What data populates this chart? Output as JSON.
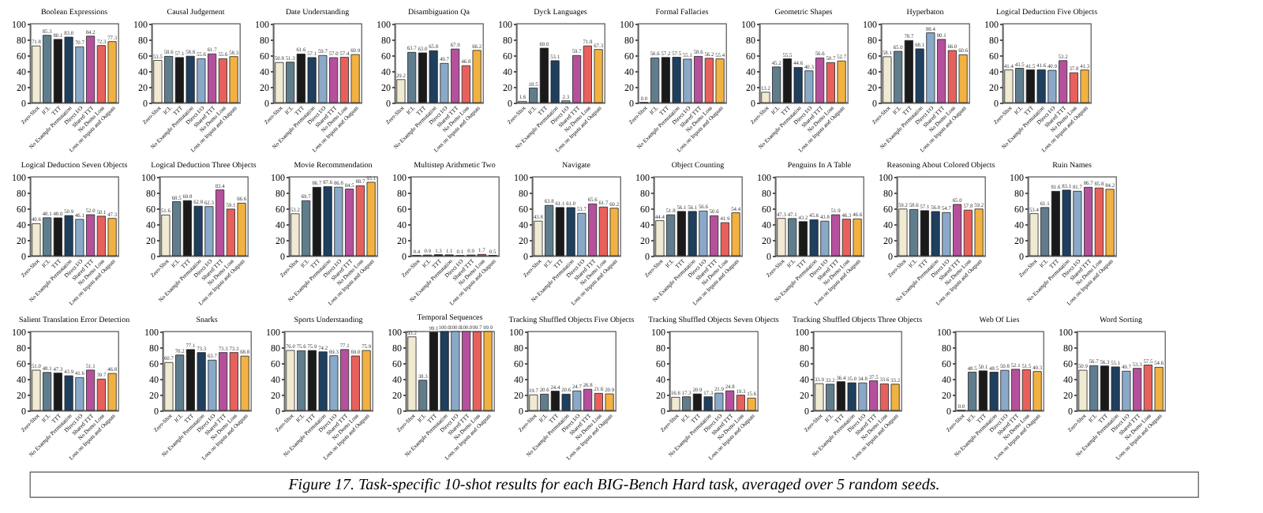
{
  "chart_data": [
    {
      "type": "bar",
      "title": "Boolean Expressions",
      "categories": [
        "Zero-Shot",
        "ICL",
        "TTT",
        "No Example Permutation",
        "Direct I/O",
        "Shared TTT",
        "No Demo Loss",
        "Loss on Inputs and Outputs"
      ],
      "values": [
        71.8,
        85.3,
        80.1,
        83.0,
        70.7,
        84.2,
        72.3,
        77.3
      ],
      "value_labels": [
        "71.8",
        "85.3",
        "80.1",
        "83.0",
        "70.7",
        "84.2",
        "72.3",
        "77.3"
      ],
      "colors": [
        "#f0ead2",
        "#5f7d8c",
        "#1a1a1a",
        "#1f3f5f",
        "#8aa9c9",
        "#b5509c",
        "#e8605c",
        "#f2b242"
      ],
      "ylim": [
        0,
        100
      ],
      "yticks": [
        0,
        20,
        40,
        60,
        80,
        100
      ]
    },
    {
      "type": "bar",
      "title": "Causal Judgement",
      "categories": [
        "Zero-Shot",
        "ICL",
        "TTT",
        "No Example Permutation",
        "Direct I/O",
        "Shared TTT",
        "No Demo Loss",
        "Loss on Inputs and Outputs"
      ],
      "values": [
        53.5,
        58.6,
        57.1,
        58.8,
        55.6,
        61.7,
        55.6,
        58.3
      ],
      "value_labels": [
        "53.5",
        "58.6",
        "57.1",
        "58.8",
        "55.6",
        "61.7",
        "55.6",
        "58.3"
      ],
      "colors": [
        "#f0ead2",
        "#5f7d8c",
        "#1a1a1a",
        "#1f3f5f",
        "#8aa9c9",
        "#b5509c",
        "#e8605c",
        "#f2b242"
      ],
      "ylim": [
        0,
        100
      ],
      "yticks": [
        0,
        20,
        40,
        60,
        80,
        100
      ]
    },
    {
      "type": "bar",
      "title": "Date Understanding",
      "categories": [
        "Zero-Shot",
        "ICL",
        "TTT",
        "No Example Permutation",
        "Direct I/O",
        "Shared TTT",
        "No Demo Loss",
        "Loss on Inputs and Outputs"
      ],
      "values": [
        50.8,
        51.3,
        61.6,
        57.1,
        59.7,
        57.0,
        57.4,
        60.9
      ],
      "value_labels": [
        "50.8",
        "51.3",
        "61.6",
        "57.1",
        "59.7",
        "57.0",
        "57.4",
        "60.9"
      ],
      "colors": [
        "#f0ead2",
        "#5f7d8c",
        "#1a1a1a",
        "#1f3f5f",
        "#8aa9c9",
        "#b5509c",
        "#e8605c",
        "#f2b242"
      ],
      "ylim": [
        0,
        100
      ],
      "yticks": [
        0,
        20,
        40,
        60,
        80,
        100
      ]
    },
    {
      "type": "bar",
      "title": "Disambiguation Qa",
      "categories": [
        "Zero-Shot",
        "ICL",
        "TTT",
        "No Example Permutation",
        "Direct I/O",
        "Shared TTT",
        "No Demo Loss",
        "Loss on Inputs and Outputs"
      ],
      "values": [
        29.2,
        63.7,
        63.0,
        65.8,
        49.7,
        67.9,
        46.8,
        66.2
      ],
      "value_labels": [
        "29.2",
        "63.7",
        "63.0",
        "65.8",
        "49.7",
        "67.9",
        "46.8",
        "66.2"
      ],
      "colors": [
        "#f0ead2",
        "#5f7d8c",
        "#1a1a1a",
        "#1f3f5f",
        "#8aa9c9",
        "#b5509c",
        "#e8605c",
        "#f2b242"
      ],
      "ylim": [
        0,
        100
      ],
      "yticks": [
        0,
        20,
        40,
        60,
        80,
        100
      ]
    },
    {
      "type": "bar",
      "title": "Dyck Languages",
      "categories": [
        "Zero-Shot",
        "ICL",
        "TTT",
        "No Example Permutation",
        "Direct I/O",
        "Shared TTT",
        "No Demo Loss",
        "Loss on Inputs and Outputs"
      ],
      "values": [
        1.6,
        18.5,
        69.0,
        53.1,
        2.3,
        59.7,
        71.8,
        67.3
      ],
      "value_labels": [
        "1.6",
        "18.5",
        "69.0",
        "53.1",
        "2.3",
        "59.7",
        "71.8",
        "67.3"
      ],
      "colors": [
        "#f0ead2",
        "#5f7d8c",
        "#1a1a1a",
        "#1f3f5f",
        "#8aa9c9",
        "#b5509c",
        "#e8605c",
        "#f2b242"
      ],
      "ylim": [
        0,
        100
      ],
      "yticks": [
        0,
        20,
        40,
        60,
        80,
        100
      ]
    },
    {
      "type": "bar",
      "title": "Formal Fallacies",
      "categories": [
        "Zero-Shot",
        "ICL",
        "TTT",
        "No Example Permutation",
        "Direct I/O",
        "Shared TTT",
        "No Demo Loss",
        "Loss on Inputs and Outputs"
      ],
      "values": [
        0.0,
        56.6,
        57.2,
        57.5,
        55.1,
        58.6,
        56.2,
        55.4
      ],
      "value_labels": [
        "0.0",
        "56.6",
        "57.2",
        "57.5",
        "55.1",
        "58.6",
        "56.2",
        "55.4"
      ],
      "colors": [
        "#f0ead2",
        "#5f7d8c",
        "#1a1a1a",
        "#1f3f5f",
        "#8aa9c9",
        "#b5509c",
        "#e8605c",
        "#f2b242"
      ],
      "ylim": [
        0,
        100
      ],
      "yticks": [
        0,
        20,
        40,
        60,
        80,
        100
      ]
    },
    {
      "type": "bar",
      "title": "Geometric Shapes",
      "categories": [
        "Zero-Shot",
        "ICL",
        "TTT",
        "No Example Permutation",
        "Direct I/O",
        "Shared TTT",
        "No Demo Loss",
        "Loss on Inputs and Outputs"
      ],
      "values": [
        13.2,
        45.2,
        55.5,
        44.6,
        40.3,
        56.6,
        50.7,
        52.7
      ],
      "value_labels": [
        "13.2",
        "45.2",
        "55.5",
        "44.6",
        "40.3",
        "56.6",
        "50.7",
        "52.7"
      ],
      "colors": [
        "#f0ead2",
        "#5f7d8c",
        "#1a1a1a",
        "#1f3f5f",
        "#8aa9c9",
        "#b5509c",
        "#e8605c",
        "#f2b242"
      ],
      "ylim": [
        0,
        100
      ],
      "yticks": [
        0,
        20,
        40,
        60,
        80,
        100
      ]
    },
    {
      "type": "bar",
      "title": "Hyperbaton",
      "categories": [
        "Zero-Shot",
        "ICL",
        "TTT",
        "No Example Permutation",
        "Direct I/O",
        "Shared TTT",
        "No Demo Loss",
        "Loss on Inputs and Outputs"
      ],
      "values": [
        58.1,
        65.0,
        78.7,
        68.1,
        88.4,
        80.1,
        66.0,
        60.6
      ],
      "value_labels": [
        "58.1",
        "65.0",
        "78.7",
        "68.1",
        "88.4",
        "80.1",
        "66.0",
        "60.6"
      ],
      "colors": [
        "#f0ead2",
        "#5f7d8c",
        "#1a1a1a",
        "#1f3f5f",
        "#8aa9c9",
        "#b5509c",
        "#e8605c",
        "#f2b242"
      ],
      "ylim": [
        0,
        100
      ],
      "yticks": [
        0,
        20,
        40,
        60,
        80,
        100
      ]
    },
    {
      "type": "bar",
      "title": "Logical Deduction Five Objects",
      "categories": [
        "Zero-Shot",
        "ICL",
        "TTT",
        "No Example Permutation",
        "Direct I/O",
        "Shared TTT",
        "No Demo Loss",
        "Loss on Inputs and Outputs"
      ],
      "values": [
        41.4,
        43.5,
        41.5,
        41.6,
        40.9,
        53.2,
        37.8,
        41.3
      ],
      "value_labels": [
        "41.4",
        "43.5",
        "41.5",
        "41.6",
        "40.9",
        "53.2",
        "37.8",
        "41.3"
      ],
      "colors": [
        "#f0ead2",
        "#5f7d8c",
        "#1a1a1a",
        "#1f3f5f",
        "#8aa9c9",
        "#b5509c",
        "#e8605c",
        "#f2b242"
      ],
      "ylim": [
        0,
        100
      ],
      "yticks": [
        0,
        20,
        40,
        60,
        80,
        100
      ]
    },
    {
      "type": "bar",
      "title": "Logical Deduction Seven Objects",
      "categories": [
        "Zero-Shot",
        "ICL",
        "TTT",
        "No Example Permutation",
        "Direct I/O",
        "Shared TTT",
        "No Demo Loss",
        "Loss on Inputs and Outputs"
      ],
      "values": [
        40.6,
        48.1,
        48.0,
        50.9,
        46.1,
        52.0,
        50.1,
        47.3
      ],
      "value_labels": [
        "40.6",
        "48.1",
        "48.0",
        "50.9",
        "46.1",
        "52.0",
        "50.1",
        "47.3"
      ],
      "colors": [
        "#f0ead2",
        "#5f7d8c",
        "#1a1a1a",
        "#1f3f5f",
        "#8aa9c9",
        "#b5509c",
        "#e8605c",
        "#f2b242"
      ],
      "ylim": [
        0,
        100
      ],
      "yticks": [
        0,
        20,
        40,
        60,
        80,
        100
      ]
    },
    {
      "type": "bar",
      "title": "Logical Deduction Three Objects",
      "categories": [
        "Zero-Shot",
        "ICL",
        "TTT",
        "No Example Permutation",
        "Direct I/O",
        "Shared TTT",
        "No Demo Loss",
        "Loss on Inputs and Outputs"
      ],
      "values": [
        51.6,
        68.5,
        69.8,
        62.8,
        62.3,
        83.4,
        59.1,
        66.6
      ],
      "value_labels": [
        "51.6",
        "68.5",
        "69.8",
        "62.8",
        "62.3",
        "83.4",
        "59.1",
        "66.6"
      ],
      "colors": [
        "#f0ead2",
        "#5f7d8c",
        "#1a1a1a",
        "#1f3f5f",
        "#8aa9c9",
        "#b5509c",
        "#e8605c",
        "#f2b242"
      ],
      "ylim": [
        0,
        100
      ],
      "yticks": [
        0,
        20,
        40,
        60,
        80,
        100
      ]
    },
    {
      "type": "bar",
      "title": "Movie Recommendation",
      "categories": [
        "Zero-Shot",
        "ICL",
        "TTT",
        "No Example Permutation",
        "Direct I/O",
        "Shared TTT",
        "No Demo Loss",
        "Loss on Inputs and Outputs"
      ],
      "values": [
        53.2,
        69.7,
        86.7,
        87.6,
        86.8,
        84.5,
        88.7,
        93.1
      ],
      "value_labels": [
        "53.2",
        "69.7",
        "86.7",
        "87.6",
        "86.8",
        "84.5",
        "88.7",
        "93.1"
      ],
      "colors": [
        "#f0ead2",
        "#5f7d8c",
        "#1a1a1a",
        "#1f3f5f",
        "#8aa9c9",
        "#b5509c",
        "#e8605c",
        "#f2b242"
      ],
      "ylim": [
        0,
        100
      ],
      "yticks": [
        0,
        20,
        40,
        60,
        80,
        100
      ]
    },
    {
      "type": "bar",
      "title": "Multistep Arithmetic Two",
      "categories": [
        "Zero-Shot",
        "ICL",
        "TTT",
        "No Example Permutation",
        "Direct I/O",
        "Shared TTT",
        "No Demo Loss",
        "Loss on Inputs and Outputs"
      ],
      "values": [
        0.4,
        0.9,
        1.3,
        1.1,
        0.1,
        0.9,
        1.7,
        0.5
      ],
      "value_labels": [
        "0.4",
        "0.9",
        "1.3",
        "1.1",
        "0.1",
        "0.9",
        "1.7",
        "0.5"
      ],
      "colors": [
        "#f0ead2",
        "#5f7d8c",
        "#1a1a1a",
        "#1f3f5f",
        "#8aa9c9",
        "#b5509c",
        "#e8605c",
        "#f2b242"
      ],
      "ylim": [
        0,
        100
      ],
      "yticks": [
        0,
        20,
        40,
        60,
        80,
        100
      ]
    },
    {
      "type": "bar",
      "title": "Navigate",
      "categories": [
        "Zero-Shot",
        "ICL",
        "TTT",
        "No Example Permutation",
        "Direct I/O",
        "Shared TTT",
        "No Demo Loss",
        "Loss on Inputs and Outputs"
      ],
      "values": [
        43.8,
        63.8,
        61.1,
        61.0,
        53.7,
        65.6,
        61.7,
        60.2
      ],
      "value_labels": [
        "43.8",
        "63.8",
        "61.1",
        "61.0",
        "53.7",
        "65.6",
        "61.7",
        "60.2"
      ],
      "colors": [
        "#f0ead2",
        "#5f7d8c",
        "#1a1a1a",
        "#1f3f5f",
        "#8aa9c9",
        "#b5509c",
        "#e8605c",
        "#f2b242"
      ],
      "ylim": [
        0,
        100
      ],
      "yticks": [
        0,
        20,
        40,
        60,
        80,
        100
      ]
    },
    {
      "type": "bar",
      "title": "Object Counting",
      "categories": [
        "Zero-Shot",
        "ICL",
        "TTT",
        "No Example Permutation",
        "Direct I/O",
        "Shared TTT",
        "No Demo Loss",
        "Loss on Inputs and Outputs"
      ],
      "values": [
        44.4,
        51.8,
        56.1,
        56.1,
        56.6,
        50.6,
        41.9,
        54.4
      ],
      "value_labels": [
        "44.4",
        "51.8",
        "56.1",
        "56.1",
        "56.6",
        "50.6",
        "41.9",
        "54.4"
      ],
      "colors": [
        "#f0ead2",
        "#5f7d8c",
        "#1a1a1a",
        "#1f3f5f",
        "#8aa9c9",
        "#b5509c",
        "#e8605c",
        "#f2b242"
      ],
      "ylim": [
        0,
        100
      ],
      "yticks": [
        0,
        20,
        40,
        60,
        80,
        100
      ]
    },
    {
      "type": "bar",
      "title": "Penguins In A Table",
      "categories": [
        "Zero-Shot",
        "ICL",
        "TTT",
        "No Example Permutation",
        "Direct I/O",
        "Shared TTT",
        "No Demo Loss",
        "Loss on Inputs and Outputs"
      ],
      "values": [
        47.3,
        47.1,
        43.2,
        45.6,
        43.8,
        51.9,
        46.3,
        46.6
      ],
      "value_labels": [
        "47.3",
        "47.1",
        "43.2",
        "45.6",
        "43.8",
        "51.9",
        "46.3",
        "46.6"
      ],
      "colors": [
        "#f0ead2",
        "#5f7d8c",
        "#1a1a1a",
        "#1f3f5f",
        "#8aa9c9",
        "#b5509c",
        "#e8605c",
        "#f2b242"
      ],
      "ylim": [
        0,
        100
      ],
      "yticks": [
        0,
        20,
        40,
        60,
        80,
        100
      ]
    },
    {
      "type": "bar",
      "title": "Reasoning About Colored Objects",
      "categories": [
        "Zero-Shot",
        "ICL",
        "TTT",
        "No Example Permutation",
        "Direct I/O",
        "Shared TTT",
        "No Demo Loss",
        "Loss on Inputs and Outputs"
      ],
      "values": [
        59.2,
        58.6,
        57.1,
        56.0,
        54.7,
        65.0,
        57.8,
        59.2
      ],
      "value_labels": [
        "59.2",
        "58.6",
        "57.1",
        "56.0",
        "54.7",
        "65.0",
        "57.8",
        "59.2"
      ],
      "colors": [
        "#f0ead2",
        "#5f7d8c",
        "#1a1a1a",
        "#1f3f5f",
        "#8aa9c9",
        "#b5509c",
        "#e8605c",
        "#f2b242"
      ],
      "ylim": [
        0,
        100
      ],
      "yticks": [
        0,
        20,
        40,
        60,
        80,
        100
      ]
    },
    {
      "type": "bar",
      "title": "Ruin Names",
      "categories": [
        "Zero-Shot",
        "ICL",
        "TTT",
        "No Example Permutation",
        "Direct I/O",
        "Shared TTT",
        "No Demo Loss",
        "Loss on Inputs and Outputs"
      ],
      "values": [
        53.4,
        61.1,
        81.6,
        83.1,
        81.7,
        86.7,
        85.8,
        84.2
      ],
      "value_labels": [
        "53.4",
        "61.1",
        "81.6",
        "83.1",
        "81.7",
        "86.7",
        "85.8",
        "84.2"
      ],
      "colors": [
        "#f0ead2",
        "#5f7d8c",
        "#1a1a1a",
        "#1f3f5f",
        "#8aa9c9",
        "#b5509c",
        "#e8605c",
        "#f2b242"
      ],
      "ylim": [
        0,
        100
      ],
      "yticks": [
        0,
        20,
        40,
        60,
        80,
        100
      ]
    },
    {
      "type": "bar",
      "title": "Salient Translation Error Detection",
      "categories": [
        "Zero-Shot",
        "ICL",
        "TTT",
        "No Example Permutation",
        "Direct I/O",
        "Shared TTT",
        "No Demo Loss",
        "Loss on Inputs and Outputs"
      ],
      "values": [
        51.0,
        48.1,
        47.3,
        43.9,
        41.6,
        51.1,
        39.7,
        46.8
      ],
      "value_labels": [
        "51.0",
        "48.1",
        "47.3",
        "43.9",
        "41.6",
        "51.1",
        "39.7",
        "46.8"
      ],
      "colors": [
        "#f0ead2",
        "#5f7d8c",
        "#1a1a1a",
        "#1f3f5f",
        "#8aa9c9",
        "#b5509c",
        "#e8605c",
        "#f2b242"
      ],
      "ylim": [
        0,
        100
      ],
      "yticks": [
        0,
        20,
        40,
        60,
        80,
        100
      ]
    },
    {
      "type": "bar",
      "title": "Snarks",
      "categories": [
        "Zero-Shot",
        "ICL",
        "TTT",
        "No Example Permutation",
        "Direct I/O",
        "Shared TTT",
        "No Demo Loss",
        "Loss on Inputs and Outputs"
      ],
      "values": [
        60.7,
        70.2,
        77.1,
        73.3,
        63.7,
        73.3,
        73.3,
        68.8
      ],
      "value_labels": [
        "60.7",
        "70.2",
        "77.1",
        "73.3",
        "63.7",
        "73.3",
        "73.3",
        "68.8"
      ],
      "colors": [
        "#f0ead2",
        "#5f7d8c",
        "#1a1a1a",
        "#1f3f5f",
        "#8aa9c9",
        "#b5509c",
        "#e8605c",
        "#f2b242"
      ],
      "ylim": [
        0,
        100
      ],
      "yticks": [
        0,
        20,
        40,
        60,
        80,
        100
      ]
    },
    {
      "type": "bar",
      "title": "Sports Understanding",
      "categories": [
        "Zero-Shot",
        "ICL",
        "TTT",
        "No Example Permutation",
        "Direct I/O",
        "Shared TTT",
        "No Demo Loss",
        "Loss on Inputs and Outputs"
      ],
      "values": [
        76.0,
        75.6,
        75.9,
        74.2,
        69.3,
        77.1,
        69.0,
        75.9
      ],
      "value_labels": [
        "76.0",
        "75.6",
        "75.9",
        "74.2",
        "69.3",
        "77.1",
        "69.0",
        "75.9"
      ],
      "colors": [
        "#f0ead2",
        "#5f7d8c",
        "#1a1a1a",
        "#1f3f5f",
        "#8aa9c9",
        "#b5509c",
        "#e8605c",
        "#f2b242"
      ],
      "ylim": [
        0,
        100
      ],
      "yticks": [
        0,
        20,
        40,
        60,
        80,
        100
      ]
    },
    {
      "type": "bar",
      "title": "Temporal Sequences",
      "categories": [
        "Zero-Shot",
        "ICL",
        "TTT",
        "No Example Permutation",
        "Direct I/O",
        "Shared TTT",
        "No Demo Loss",
        "Loss on Inputs and Outputs"
      ],
      "values": [
        93.2,
        38.3,
        99.1,
        100.0,
        100.0,
        100.0,
        99.7,
        99.9
      ],
      "value_labels": [
        "93.2",
        "38.3",
        "99.1",
        "100.0",
        "100.0",
        "100.0",
        "99.7",
        "99.9"
      ],
      "colors": [
        "#f0ead2",
        "#5f7d8c",
        "#1a1a1a",
        "#1f3f5f",
        "#8aa9c9",
        "#b5509c",
        "#e8605c",
        "#f2b242"
      ],
      "ylim": [
        0,
        100
      ],
      "yticks": [
        0,
        20,
        40,
        60,
        80,
        100
      ]
    },
    {
      "type": "bar",
      "title": "Tracking Shuffled Objects Five Objects",
      "categories": [
        "Zero-Shot",
        "ICL",
        "TTT",
        "No Example Permutation",
        "Direct I/O",
        "Shared TTT",
        "No Demo Loss",
        "Loss on Inputs and Outputs"
      ],
      "values": [
        19.7,
        20.6,
        24.4,
        20.6,
        24.7,
        26.8,
        21.6,
        20.9
      ],
      "value_labels": [
        "19.7",
        "20.6",
        "24.4",
        "20.6",
        "24.7",
        "26.8",
        "21.6",
        "20.9"
      ],
      "colors": [
        "#f0ead2",
        "#5f7d8c",
        "#1a1a1a",
        "#1f3f5f",
        "#8aa9c9",
        "#b5509c",
        "#e8605c",
        "#f2b242"
      ],
      "ylim": [
        0,
        100
      ],
      "yticks": [
        0,
        20,
        40,
        60,
        80,
        100
      ]
    },
    {
      "type": "bar",
      "title": "Tracking Shuffled Objects Seven Objects",
      "categories": [
        "Zero-Shot",
        "ICL",
        "TTT",
        "No Example Permutation",
        "Direct I/O",
        "Shared TTT",
        "No Demo Loss",
        "Loss on Inputs and Outputs"
      ],
      "values": [
        16.6,
        17.3,
        20.9,
        17.3,
        21.9,
        24.8,
        19.3,
        15.6
      ],
      "value_labels": [
        "16.6",
        "17.3",
        "20.9",
        "17.3",
        "21.9",
        "24.8",
        "19.3",
        "15.6"
      ],
      "colors": [
        "#f0ead2",
        "#5f7d8c",
        "#1a1a1a",
        "#1f3f5f",
        "#8aa9c9",
        "#b5509c",
        "#e8605c",
        "#f2b242"
      ],
      "ylim": [
        0,
        100
      ],
      "yticks": [
        0,
        20,
        40,
        60,
        80,
        100
      ]
    },
    {
      "type": "bar",
      "title": "Tracking Shuffled Objects Three Objects",
      "categories": [
        "Zero-Shot",
        "ICL",
        "TTT",
        "No Example Permutation",
        "Direct I/O",
        "Shared TTT",
        "No Demo Loss",
        "Loss on Inputs and Outputs"
      ],
      "values": [
        33.9,
        33.2,
        36.4,
        35.0,
        34.8,
        37.5,
        33.6,
        33.2
      ],
      "value_labels": [
        "33.9",
        "33.2",
        "36.4",
        "35.0",
        "34.8",
        "37.5",
        "33.6",
        "33.2"
      ],
      "colors": [
        "#f0ead2",
        "#5f7d8c",
        "#1a1a1a",
        "#1f3f5f",
        "#8aa9c9",
        "#b5509c",
        "#e8605c",
        "#f2b242"
      ],
      "ylim": [
        0,
        100
      ],
      "yticks": [
        0,
        20,
        40,
        60,
        80,
        100
      ]
    },
    {
      "type": "bar",
      "title": "Web Of Lies",
      "categories": [
        "Zero-Shot",
        "ICL",
        "TTT",
        "No Example Permutation",
        "Direct I/O",
        "Shared TTT",
        "No Demo Loss",
        "Loss on Inputs and Outputs"
      ],
      "values": [
        0.0,
        48.5,
        50.1,
        48.5,
        50.8,
        52.1,
        51.5,
        49.3
      ],
      "value_labels": [
        "0.0",
        "48.5",
        "50.1",
        "48.5",
        "50.8",
        "52.1",
        "51.5",
        "49.3"
      ],
      "colors": [
        "#f0ead2",
        "#5f7d8c",
        "#1a1a1a",
        "#1f3f5f",
        "#8aa9c9",
        "#b5509c",
        "#e8605c",
        "#f2b242"
      ],
      "ylim": [
        0,
        100
      ],
      "yticks": [
        0,
        20,
        40,
        60,
        80,
        100
      ]
    },
    {
      "type": "bar",
      "title": "Word Sorting",
      "categories": [
        "Zero-Shot",
        "ICL",
        "TTT",
        "No Example Permutation",
        "Direct I/O",
        "Shared TTT",
        "No Demo Loss",
        "Loss on Inputs and Outputs"
      ],
      "values": [
        50.9,
        56.7,
        56.3,
        55.1,
        49.7,
        53.3,
        57.5,
        54.6
      ],
      "value_labels": [
        "50.9",
        "56.7",
        "56.3",
        "55.1",
        "49.7",
        "53.3",
        "57.5",
        "54.6"
      ],
      "colors": [
        "#f0ead2",
        "#5f7d8c",
        "#1a1a1a",
        "#1f3f5f",
        "#8aa9c9",
        "#b5509c",
        "#e8605c",
        "#f2b242"
      ],
      "ylim": [
        0,
        100
      ],
      "yticks": [
        0,
        20,
        40,
        60,
        80,
        100
      ],
      "annotations": [
        "Figure 17. Task-specific 10-shot results for each BIG-Bench Hard task, averaged over 5 random seeds."
      ]
    }
  ]
}
